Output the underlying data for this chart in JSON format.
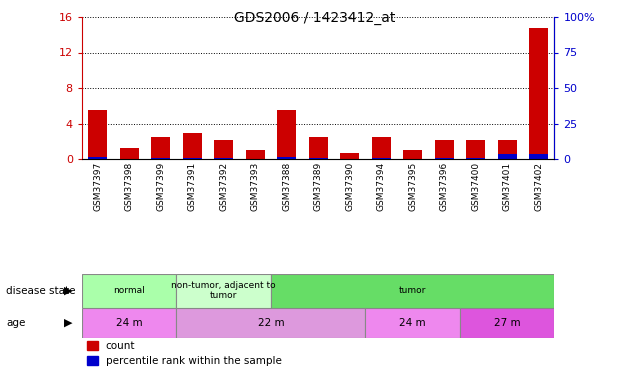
{
  "title": "GDS2006 / 1423412_at",
  "samples": [
    "GSM37397",
    "GSM37398",
    "GSM37399",
    "GSM37391",
    "GSM37392",
    "GSM37393",
    "GSM37388",
    "GSM37389",
    "GSM37390",
    "GSM37394",
    "GSM37395",
    "GSM37396",
    "GSM37400",
    "GSM37401",
    "GSM37402"
  ],
  "count_values": [
    5.5,
    1.3,
    2.5,
    3.0,
    2.2,
    1.0,
    5.5,
    2.5,
    0.7,
    2.5,
    1.0,
    2.2,
    2.2,
    2.2,
    14.8
  ],
  "percentile_values": [
    1.8,
    0.5,
    0.9,
    1.0,
    0.7,
    0.4,
    1.8,
    0.9,
    0.3,
    0.9,
    0.4,
    0.7,
    0.7,
    3.8,
    4.0
  ],
  "count_color": "#cc0000",
  "percentile_color": "#0000cc",
  "ylim_left": [
    0,
    16
  ],
  "ylim_right": [
    0,
    100
  ],
  "yticks_left": [
    0,
    4,
    8,
    12,
    16
  ],
  "yticks_right": [
    0,
    25,
    50,
    75,
    100
  ],
  "ytick_labels_left": [
    "0",
    "4",
    "8",
    "12",
    "16"
  ],
  "ytick_labels_right": [
    "0",
    "25",
    "50",
    "75",
    "100%"
  ],
  "left_tick_color": "#cc0000",
  "right_tick_color": "#0000cc",
  "disease_state_groups": [
    {
      "label": "normal",
      "start": 0,
      "end": 3,
      "color": "#aaffaa"
    },
    {
      "label": "non-tumor, adjacent to\ntumor",
      "start": 3,
      "end": 6,
      "color": "#ccffcc"
    },
    {
      "label": "tumor",
      "start": 6,
      "end": 15,
      "color": "#66dd66"
    }
  ],
  "age_groups": [
    {
      "label": "24 m",
      "start": 0,
      "end": 3,
      "color": "#ee88ee"
    },
    {
      "label": "22 m",
      "start": 3,
      "end": 9,
      "color": "#dd99dd"
    },
    {
      "label": "24 m",
      "start": 9,
      "end": 12,
      "color": "#ee88ee"
    },
    {
      "label": "27 m",
      "start": 12,
      "end": 15,
      "color": "#dd55dd"
    }
  ],
  "legend_count_label": "count",
  "legend_percentile_label": "percentile rank within the sample",
  "grid_color": "#000000"
}
